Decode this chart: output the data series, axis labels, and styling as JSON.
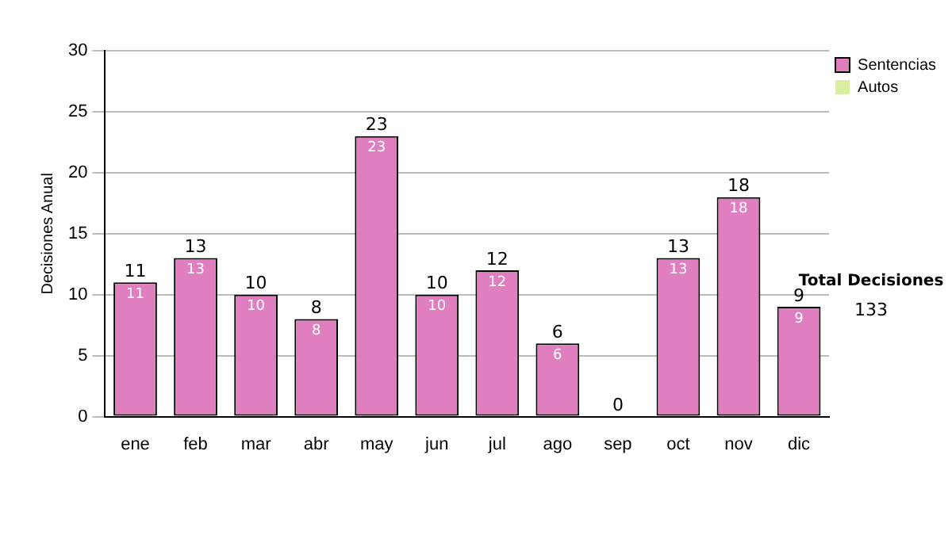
{
  "chart_data": {
    "type": "bar",
    "ylabel": "Decisiones Anual",
    "categories": [
      "ene",
      "feb",
      "mar",
      "abr",
      "may",
      "jun",
      "jul",
      "ago",
      "sep",
      "oct",
      "nov",
      "dic"
    ],
    "series": [
      {
        "name": "Sentencias",
        "color": "#e07fc0",
        "values": [
          11,
          13,
          10,
          8,
          23,
          10,
          12,
          6,
          0,
          13,
          18,
          9
        ],
        "value_labels": [
          "11",
          "13",
          "10",
          "8",
          "23",
          "10",
          "12",
          "6",
          null,
          "13",
          "18",
          "9"
        ]
      },
      {
        "name": "Autos",
        "color": "#d8eea0",
        "values": [
          0,
          0,
          0,
          0,
          0,
          0,
          0,
          0,
          0,
          0,
          0,
          0
        ]
      }
    ],
    "stacked": true,
    "totals": [
      "11",
      "13",
      "10",
      "8",
      "23",
      "10",
      "12",
      "6",
      "0",
      "13",
      "18",
      "9"
    ],
    "ylim": [
      0,
      30
    ],
    "yticks": [
      0,
      5,
      10,
      15,
      20,
      25,
      30
    ],
    "grid": "y",
    "legend": "right",
    "annotations": [
      "Total Decisiones",
      "133"
    ]
  }
}
